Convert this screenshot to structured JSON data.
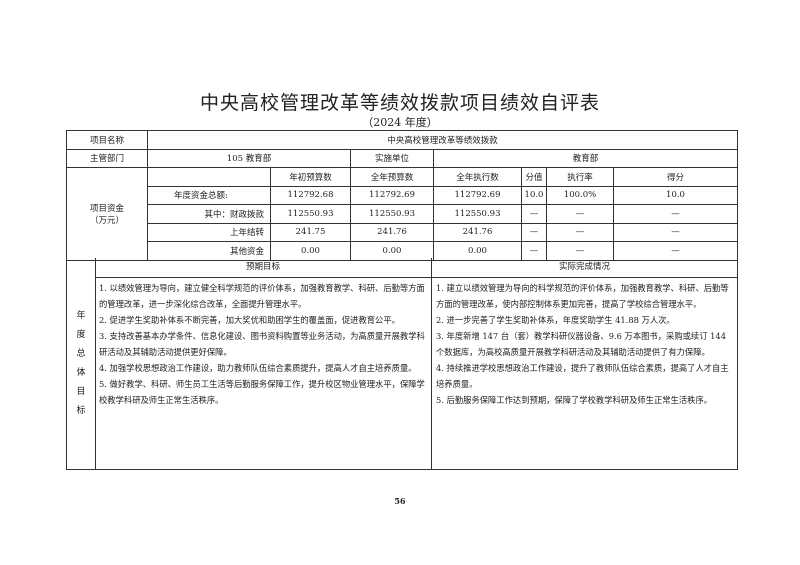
{
  "title": "中央高校管理改革等绩效拨款项目绩效自评表",
  "subtitle": "（2024 年度）",
  "project_name_label": "项目名称",
  "project_name": "中央高校管理改革等绩效拨款",
  "dept_label": "主管部门",
  "dept": "105 教育部",
  "impl_label": "实施单位",
  "impl": "教育部",
  "funds_label": "项目资金",
  "funds_unit": "（万元）",
  "funds_headers": [
    "年初预算数",
    "全年预算数",
    "全年执行数",
    "分值",
    "执行率",
    "得分"
  ],
  "funds_rows": [
    {
      "label": "年度资金总额:",
      "v": [
        "112792.68",
        "112792.69",
        "112792.69",
        "10.0",
        "100.0%",
        "10.0"
      ]
    },
    {
      "label": "其中：财政拨款",
      "v": [
        "112550.93",
        "112550.93",
        "112550.93",
        "—",
        "—",
        "—"
      ]
    },
    {
      "label": "上年结转",
      "v": [
        "241.75",
        "241.76",
        "241.76",
        "—",
        "—",
        "—"
      ]
    },
    {
      "label": "其他资金",
      "v": [
        "0.00",
        "0.00",
        "0.00",
        "—",
        "—",
        "—"
      ]
    }
  ],
  "goals_label": [
    "年",
    "度",
    "总",
    "体",
    "目",
    "标"
  ],
  "expected_header": "预期目标",
  "expected": [
    "1. 以绩效管理为导向，建立健全科学规范的评价体系，加强教育教学、科研、后勤等方面的管理改革，进一步深化综合改革，全面提升管理水平。",
    "2. 促进学生奖助补体系不断完善，加大奖优和助困学生的覆盖面，促进教育公平。",
    "3. 支持改善基本办学条件、信息化建设、图书资料购置等业务活动，为高质量开展教学科研活动及其辅助活动提供更好保障。",
    "4. 加强学校思想政治工作建设，助力教师队伍综合素质提升，提高人才自主培养质量。",
    "5. 做好教学、科研、师生员工生活等后勤服务保障工作，提升校区物业管理水平，保障学校教学科研及师生正常生活秩序。"
  ],
  "actual_header": "实际完成情况",
  "actual": [
    "1. 建立以绩效管理为导向的科学规范的评价体系，加强教育教学、科研、后勤等方面的管理改革，使内部控制体系更加完善，提高了学校综合管理水平。",
    "2. 进一步完善了学生奖助补体系，年度奖助学生 41.88 万人次。",
    "3. 年度新增 147 台（套）教学科研仪器设备、9.6 万本图书，采购或续订 144 个数据库，为高校高质量开展教学科研活动及其辅助活动提供了有力保障。",
    "4. 持续推进学校思想政治工作建设，提升了教师队伍综合素质，提高了人才自主培养质量。",
    "5. 后勤服务保障工作达到预期，保障了学校教学科研及师生正常生活秩序。"
  ],
  "page_number": "56"
}
